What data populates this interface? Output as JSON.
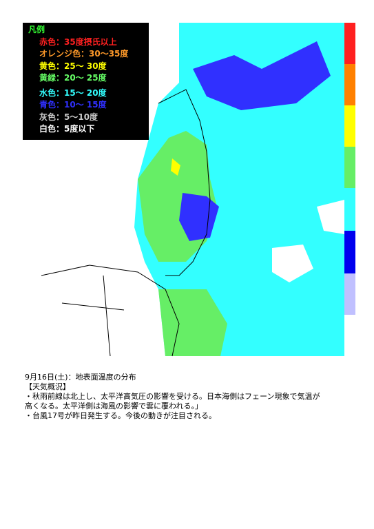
{
  "legend": {
    "title": "凡例",
    "items": [
      {
        "text": "赤色：35度摂氏以上",
        "color": "#ff2020"
      },
      {
        "text": "オレンジ色：30～35度",
        "color": "#ff9a2a"
      },
      {
        "text": "黄色：25～ 30度",
        "color": "#ffff00"
      },
      {
        "text": "黄緑：20～ 25度",
        "color": "#66ff66"
      },
      {
        "text": "水色：15～ 20度",
        "color": "#33ffff"
      },
      {
        "text": "青色：10～ 15度",
        "color": "#3030ff"
      },
      {
        "text": "灰色：5～10度",
        "color": "#c8c8c8"
      },
      {
        "text": "白色：5度以下",
        "color": "#ffffff"
      }
    ]
  },
  "caption": {
    "title": "9月16日(土)：地表面温度の分布",
    "heading": "【天気概況】",
    "lines": [
      "・秋雨前線は北上し、太平洋高気圧の影響を受ける。日本海側はフェーン現象で気温が",
      "高くなる。太平洋側は海風の影響で雲に覆われる。」",
      "・台風17号が昨日発生する。今後の動きが注目される。"
    ]
  }
}
